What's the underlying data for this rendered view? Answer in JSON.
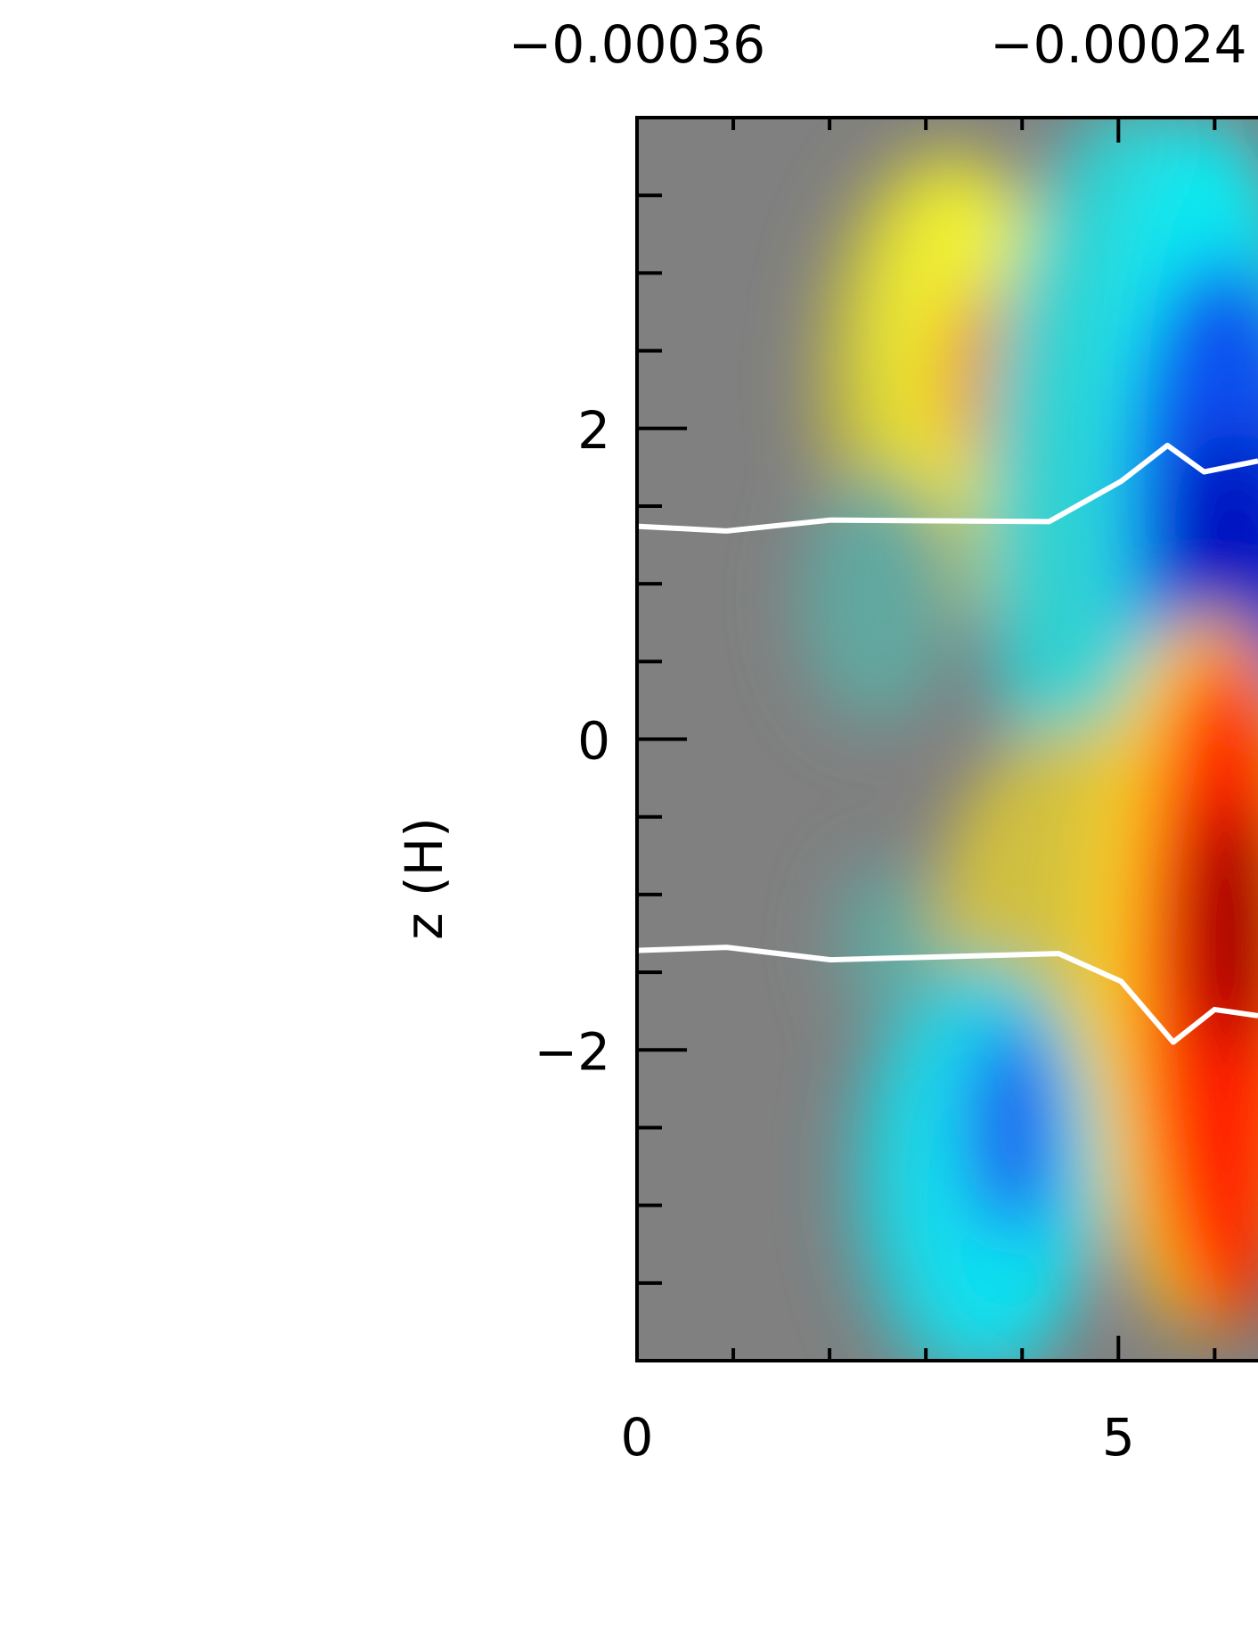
{
  "chart_data": {
    "type": "heatmap",
    "colorbar_ticks": [
      {
        "value": -0.00036,
        "label": "−0.00036"
      },
      {
        "value": -0.00024,
        "label": "−0.00024"
      }
    ],
    "ylabel": "z (H)",
    "xlim": [
      0,
      6.45
    ],
    "ylim": [
      -4,
      4
    ],
    "xticks": [
      0,
      5
    ],
    "yticks": [
      {
        "value": -2,
        "label": "−2"
      },
      0,
      2
    ],
    "xminorticks": [
      1,
      2,
      3,
      4,
      6
    ],
    "yminorticks": [
      -3.5,
      -3,
      -2.5,
      -1.5,
      -1,
      -0.5,
      0.5,
      1,
      1.5,
      2.5,
      3,
      3.5
    ],
    "series": [
      {
        "color": "#ffffff",
        "x": [
          0,
          0.93,
          2.01,
          4.28,
          5.03,
          5.51,
          5.89,
          6.45
        ],
        "values": [
          1.37,
          1.34,
          1.41,
          1.4,
          1.66,
          1.89,
          1.72,
          1.79
        ]
      },
      {
        "color": "#ffffff",
        "x": [
          0,
          0.93,
          2.01,
          4.38,
          5.03,
          5.57,
          6.0,
          6.45
        ],
        "values": [
          -1.36,
          -1.34,
          -1.42,
          -1.38,
          -1.56,
          -1.95,
          -1.74,
          -1.78
        ]
      }
    ]
  }
}
